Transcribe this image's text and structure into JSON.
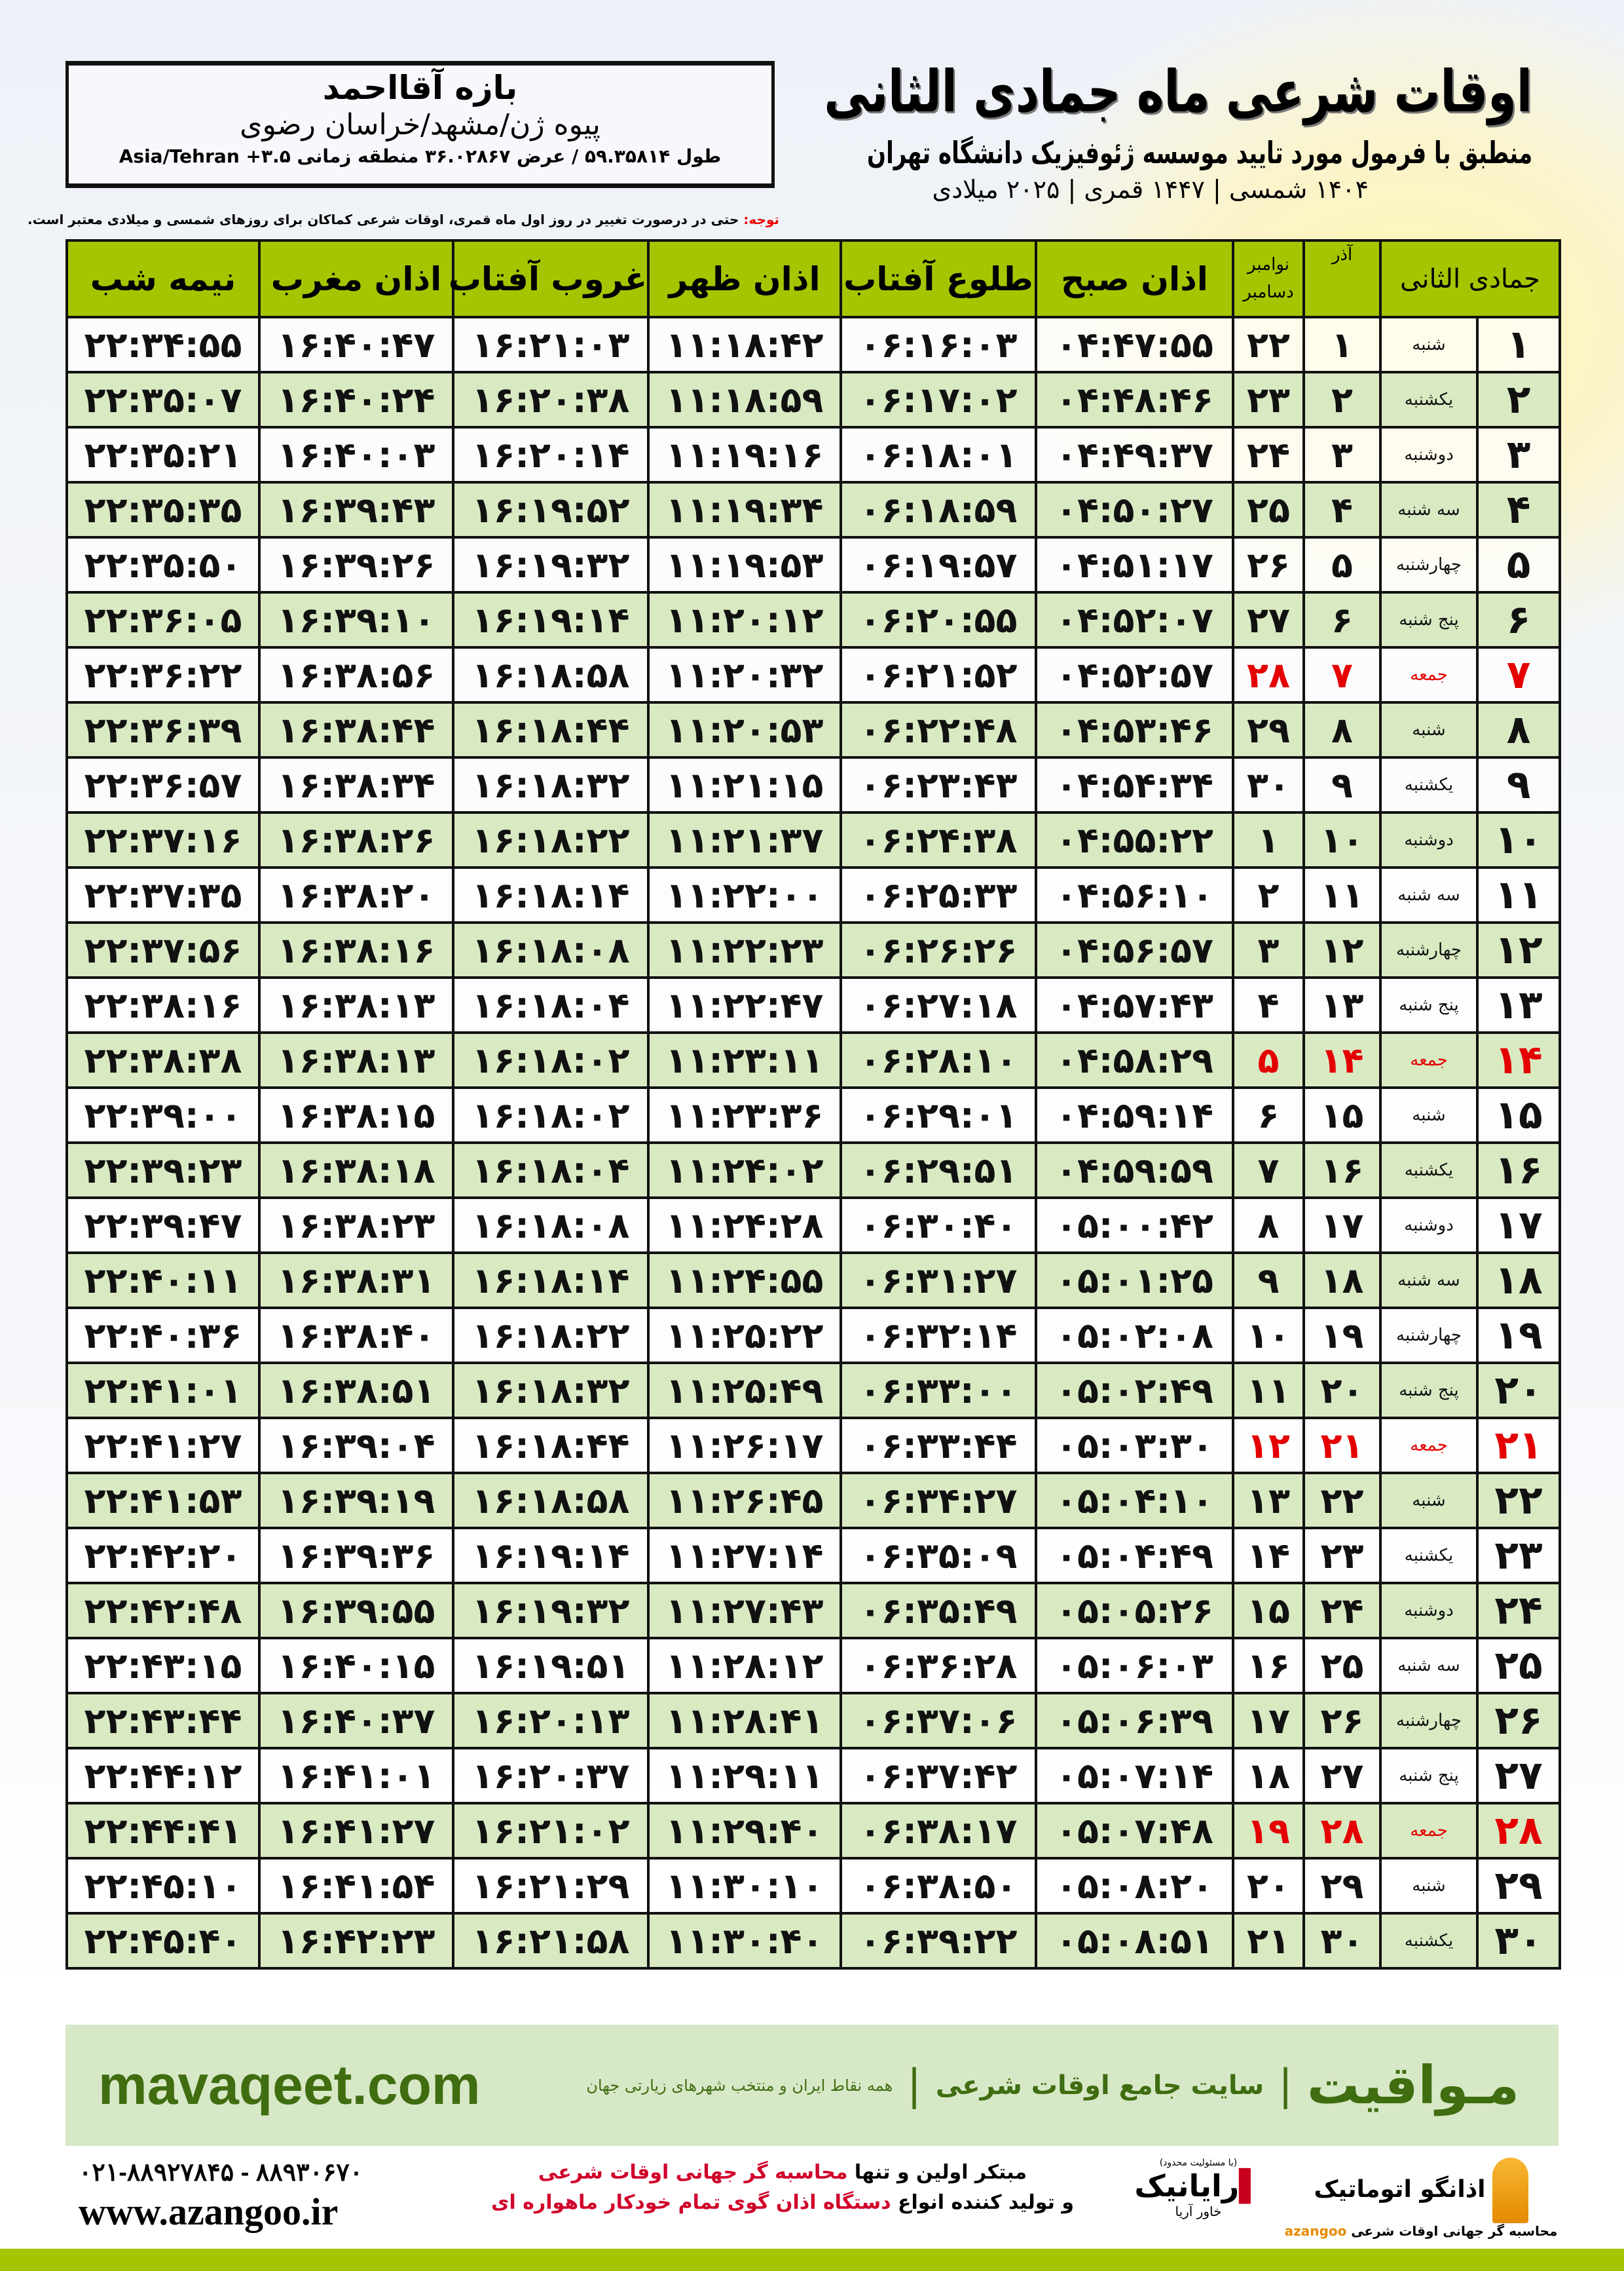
{
  "location": {
    "name": "بازه آقااحمد",
    "path": "پیوه ژن/مشهد/خراسان رضوی",
    "coords": "طول ۵۹.۳۵۸۱۴ / عرض ۳۶.۰۲۸۶۷ منطقه زمانی ۳.۵+ Asia/Tehran"
  },
  "header": {
    "title": "اوقات شرعی ماه جمادی الثانی",
    "subtitle": "منطبق با فرمول مورد تایید موسسه ژئوفیزیک دانشگاه تهران",
    "dates": "۱۴۰۴ شمسی | ۱۴۴۷ قمری | ۲۰۲۵ میلادی"
  },
  "note": {
    "label": "توجه:",
    "text": " حتی در درصورت تغییر در روز اول ماه قمری، اوقات شرعی کماکان برای روزهای شمسی و میلادی معتبر است."
  },
  "table": {
    "headers": {
      "hijri": "جمادی الثانی",
      "azar": "آذر",
      "greg_top": "نوامبر",
      "greg_bottom": "دسامبر",
      "fajr": "اذان صبح",
      "sunrise": "طلوع آفتاب",
      "dhuhr": "اذان ظهر",
      "sunset": "غروب آفتاب",
      "maghrib": "اذان مغرب",
      "midnight": "نیمه شب"
    },
    "holiday_color": "#e40000",
    "header_color": "#a6c500",
    "rows": [
      [
        "۱",
        "شنبه",
        "۱",
        "۲۲",
        "۰۴:۴۷:۵۵",
        "۰۶:۱۶:۰۳",
        "۱۱:۱۸:۴۲",
        "۱۶:۲۱:۰۳",
        "۱۶:۴۰:۴۷",
        "۲۲:۳۴:۵۵"
      ],
      [
        "۲",
        "یکشنبه",
        "۲",
        "۲۳",
        "۰۴:۴۸:۴۶",
        "۰۶:۱۷:۰۲",
        "۱۱:۱۸:۵۹",
        "۱۶:۲۰:۳۸",
        "۱۶:۴۰:۲۴",
        "۲۲:۳۵:۰۷"
      ],
      [
        "۳",
        "دوشنبه",
        "۳",
        "۲۴",
        "۰۴:۴۹:۳۷",
        "۰۶:۱۸:۰۱",
        "۱۱:۱۹:۱۶",
        "۱۶:۲۰:۱۴",
        "۱۶:۴۰:۰۳",
        "۲۲:۳۵:۲۱"
      ],
      [
        "۴",
        "سه شنبه",
        "۴",
        "۲۵",
        "۰۴:۵۰:۲۷",
        "۰۶:۱۸:۵۹",
        "۱۱:۱۹:۳۴",
        "۱۶:۱۹:۵۲",
        "۱۶:۳۹:۴۳",
        "۲۲:۳۵:۳۵"
      ],
      [
        "۵",
        "چهارشنبه",
        "۵",
        "۲۶",
        "۰۴:۵۱:۱۷",
        "۰۶:۱۹:۵۷",
        "۱۱:۱۹:۵۳",
        "۱۶:۱۹:۳۲",
        "۱۶:۳۹:۲۶",
        "۲۲:۳۵:۵۰"
      ],
      [
        "۶",
        "پنج شنبه",
        "۶",
        "۲۷",
        "۰۴:۵۲:۰۷",
        "۰۶:۲۰:۵۵",
        "۱۱:۲۰:۱۲",
        "۱۶:۱۹:۱۴",
        "۱۶:۳۹:۱۰",
        "۲۲:۳۶:۰۵"
      ],
      [
        "۷",
        "جمعه",
        "۷",
        "۲۸",
        "۰۴:۵۲:۵۷",
        "۰۶:۲۱:۵۲",
        "۱۱:۲۰:۳۲",
        "۱۶:۱۸:۵۸",
        "۱۶:۳۸:۵۶",
        "۲۲:۳۶:۲۲"
      ],
      [
        "۸",
        "شنبه",
        "۸",
        "۲۹",
        "۰۴:۵۳:۴۶",
        "۰۶:۲۲:۴۸",
        "۱۱:۲۰:۵۳",
        "۱۶:۱۸:۴۴",
        "۱۶:۳۸:۴۴",
        "۲۲:۳۶:۳۹"
      ],
      [
        "۹",
        "یکشنبه",
        "۹",
        "۳۰",
        "۰۴:۵۴:۳۴",
        "۰۶:۲۳:۴۳",
        "۱۱:۲۱:۱۵",
        "۱۶:۱۸:۳۲",
        "۱۶:۳۸:۳۴",
        "۲۲:۳۶:۵۷"
      ],
      [
        "۱۰",
        "دوشنبه",
        "۱۰",
        "۱",
        "۰۴:۵۵:۲۲",
        "۰۶:۲۴:۳۸",
        "۱۱:۲۱:۳۷",
        "۱۶:۱۸:۲۲",
        "۱۶:۳۸:۲۶",
        "۲۲:۳۷:۱۶"
      ],
      [
        "۱۱",
        "سه شنبه",
        "۱۱",
        "۲",
        "۰۴:۵۶:۱۰",
        "۰۶:۲۵:۳۳",
        "۱۱:۲۲:۰۰",
        "۱۶:۱۸:۱۴",
        "۱۶:۳۸:۲۰",
        "۲۲:۳۷:۳۵"
      ],
      [
        "۱۲",
        "چهارشنبه",
        "۱۲",
        "۳",
        "۰۴:۵۶:۵۷",
        "۰۶:۲۶:۲۶",
        "۱۱:۲۲:۲۳",
        "۱۶:۱۸:۰۸",
        "۱۶:۳۸:۱۶",
        "۲۲:۳۷:۵۶"
      ],
      [
        "۱۳",
        "پنج شنبه",
        "۱۳",
        "۴",
        "۰۴:۵۷:۴۳",
        "۰۶:۲۷:۱۸",
        "۱۱:۲۲:۴۷",
        "۱۶:۱۸:۰۴",
        "۱۶:۳۸:۱۳",
        "۲۲:۳۸:۱۶"
      ],
      [
        "۱۴",
        "جمعه",
        "۱۴",
        "۵",
        "۰۴:۵۸:۲۹",
        "۰۶:۲۸:۱۰",
        "۱۱:۲۳:۱۱",
        "۱۶:۱۸:۰۲",
        "۱۶:۳۸:۱۳",
        "۲۲:۳۸:۳۸"
      ],
      [
        "۱۵",
        "شنبه",
        "۱۵",
        "۶",
        "۰۴:۵۹:۱۴",
        "۰۶:۲۹:۰۱",
        "۱۱:۲۳:۳۶",
        "۱۶:۱۸:۰۲",
        "۱۶:۳۸:۱۵",
        "۲۲:۳۹:۰۰"
      ],
      [
        "۱۶",
        "یکشنبه",
        "۱۶",
        "۷",
        "۰۴:۵۹:۵۹",
        "۰۶:۲۹:۵۱",
        "۱۱:۲۴:۰۲",
        "۱۶:۱۸:۰۴",
        "۱۶:۳۸:۱۸",
        "۲۲:۳۹:۲۳"
      ],
      [
        "۱۷",
        "دوشنبه",
        "۱۷",
        "۸",
        "۰۵:۰۰:۴۲",
        "۰۶:۳۰:۴۰",
        "۱۱:۲۴:۲۸",
        "۱۶:۱۸:۰۸",
        "۱۶:۳۸:۲۳",
        "۲۲:۳۹:۴۷"
      ],
      [
        "۱۸",
        "سه شنبه",
        "۱۸",
        "۹",
        "۰۵:۰۱:۲۵",
        "۰۶:۳۱:۲۷",
        "۱۱:۲۴:۵۵",
        "۱۶:۱۸:۱۴",
        "۱۶:۳۸:۳۱",
        "۲۲:۴۰:۱۱"
      ],
      [
        "۱۹",
        "چهارشنبه",
        "۱۹",
        "۱۰",
        "۰۵:۰۲:۰۸",
        "۰۶:۳۲:۱۴",
        "۱۱:۲۵:۲۲",
        "۱۶:۱۸:۲۲",
        "۱۶:۳۸:۴۰",
        "۲۲:۴۰:۳۶"
      ],
      [
        "۲۰",
        "پنج شنبه",
        "۲۰",
        "۱۱",
        "۰۵:۰۲:۴۹",
        "۰۶:۳۳:۰۰",
        "۱۱:۲۵:۴۹",
        "۱۶:۱۸:۳۲",
        "۱۶:۳۸:۵۱",
        "۲۲:۴۱:۰۱"
      ],
      [
        "۲۱",
        "جمعه",
        "۲۱",
        "۱۲",
        "۰۵:۰۳:۳۰",
        "۰۶:۳۳:۴۴",
        "۱۱:۲۶:۱۷",
        "۱۶:۱۸:۴۴",
        "۱۶:۳۹:۰۴",
        "۲۲:۴۱:۲۷"
      ],
      [
        "۲۲",
        "شنبه",
        "۲۲",
        "۱۳",
        "۰۵:۰۴:۱۰",
        "۰۶:۳۴:۲۷",
        "۱۱:۲۶:۴۵",
        "۱۶:۱۸:۵۸",
        "۱۶:۳۹:۱۹",
        "۲۲:۴۱:۵۳"
      ],
      [
        "۲۳",
        "یکشنبه",
        "۲۳",
        "۱۴",
        "۰۵:۰۴:۴۹",
        "۰۶:۳۵:۰۹",
        "۱۱:۲۷:۱۴",
        "۱۶:۱۹:۱۴",
        "۱۶:۳۹:۳۶",
        "۲۲:۴۲:۲۰"
      ],
      [
        "۲۴",
        "دوشنبه",
        "۲۴",
        "۱۵",
        "۰۵:۰۵:۲۶",
        "۰۶:۳۵:۴۹",
        "۱۱:۲۷:۴۳",
        "۱۶:۱۹:۳۲",
        "۱۶:۳۹:۵۵",
        "۲۲:۴۲:۴۸"
      ],
      [
        "۲۵",
        "سه شنبه",
        "۲۵",
        "۱۶",
        "۰۵:۰۶:۰۳",
        "۰۶:۳۶:۲۸",
        "۱۱:۲۸:۱۲",
        "۱۶:۱۹:۵۱",
        "۱۶:۴۰:۱۵",
        "۲۲:۴۳:۱۵"
      ],
      [
        "۲۶",
        "چهارشنبه",
        "۲۶",
        "۱۷",
        "۰۵:۰۶:۳۹",
        "۰۶:۳۷:۰۶",
        "۱۱:۲۸:۴۱",
        "۱۶:۲۰:۱۳",
        "۱۶:۴۰:۳۷",
        "۲۲:۴۳:۴۴"
      ],
      [
        "۲۷",
        "پنج شنبه",
        "۲۷",
        "۱۸",
        "۰۵:۰۷:۱۴",
        "۰۶:۳۷:۴۲",
        "۱۱:۲۹:۱۱",
        "۱۶:۲۰:۳۷",
        "۱۶:۴۱:۰۱",
        "۲۲:۴۴:۱۲"
      ],
      [
        "۲۸",
        "جمعه",
        "۲۸",
        "۱۹",
        "۰۵:۰۷:۴۸",
        "۰۶:۳۸:۱۷",
        "۱۱:۲۹:۴۰",
        "۱۶:۲۱:۰۲",
        "۱۶:۴۱:۲۷",
        "۲۲:۴۴:۴۱"
      ],
      [
        "۲۹",
        "شنبه",
        "۲۹",
        "۲۰",
        "۰۵:۰۸:۲۰",
        "۰۶:۳۸:۵۰",
        "۱۱:۳۰:۱۰",
        "۱۶:۲۱:۲۹",
        "۱۶:۴۱:۵۴",
        "۲۲:۴۵:۱۰"
      ],
      [
        "۳۰",
        "یکشنبه",
        "۳۰",
        "۲۱",
        "۰۵:۰۸:۵۱",
        "۰۶:۳۹:۲۲",
        "۱۱:۳۰:۴۰",
        "۱۶:۲۱:۵۸",
        "۱۶:۴۲:۲۳",
        "۲۲:۴۵:۴۰"
      ]
    ]
  },
  "banner": {
    "brand": "مـواقیت",
    "tagline": "سایت جامع اوقات شرعی",
    "sub": "همه نقاط ایران و منتخب شهرهای زیارتی جهان",
    "site": "mavaqeet.com",
    "brand_color": "#3f6d10",
    "background": "#d7e8c7"
  },
  "footer": {
    "phone": "۰۲۱-۸۸۹۲۷۸۴۵ - ۸۸۹۳۰۶۷۰",
    "website": "www.azangoo.ir",
    "slogan1_a": "مبتکر اولین و تنها ",
    "slogan1_b": "محاسبه گر جهانی اوقات شرعی",
    "slogan2_a": "و تولید کننده انواع ",
    "slogan2_b": "دستگاه اذان گوی تمام خودکار ماهواره ای",
    "logo1_small": "(با مسئولیت محدود)",
    "logo1": "رایانیک",
    "logo1_sub": "خاور آریا",
    "logo2": "اذانگو اتوماتیک",
    "logo2_sub": "محاسبه گر جهانی اوقات شرعی",
    "logo2_en": "azangoo"
  }
}
